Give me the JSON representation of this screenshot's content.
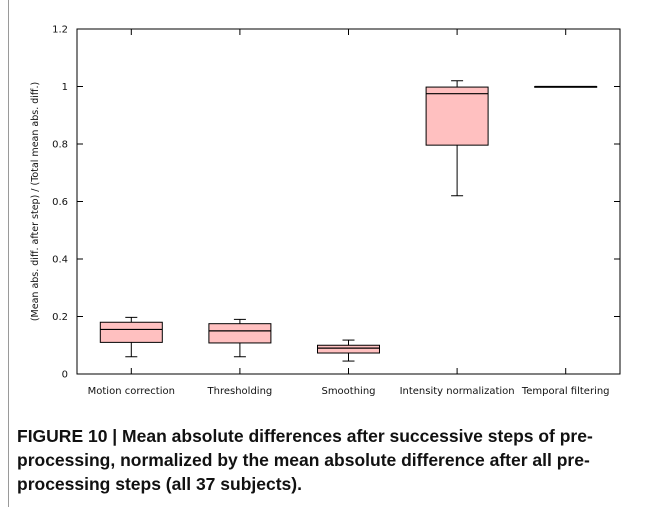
{
  "figure": {
    "caption": "FIGURE 10 | Mean absolute differences after successive steps of pre-processing, normalized by the mean absolute difference after all pre-processing steps (all 37 subjects)."
  },
  "chart_data": {
    "type": "boxplot",
    "title": "",
    "xlabel": "",
    "ylabel": "(Mean abs. diff. after step) / (Total mean abs. diff.)",
    "ylim": [
      0,
      1.2
    ],
    "yticks": [
      "0",
      "0.2",
      "0.4",
      "0.6",
      "0.8",
      "1",
      "1.2"
    ],
    "grid": false,
    "box_color": "#ffc0c0",
    "categories": [
      "Motion correction",
      "Thresholding",
      "Smoothing",
      "Intensity normalization",
      "Temporal filtering"
    ],
    "boxes": [
      {
        "whisker_low": 0.06,
        "q1": 0.11,
        "median": 0.155,
        "q3": 0.18,
        "whisker_high": 0.197
      },
      {
        "whisker_low": 0.06,
        "q1": 0.108,
        "median": 0.15,
        "q3": 0.175,
        "whisker_high": 0.19
      },
      {
        "whisker_low": 0.045,
        "q1": 0.073,
        "median": 0.09,
        "q3": 0.1,
        "whisker_high": 0.118
      },
      {
        "whisker_low": 0.62,
        "q1": 0.796,
        "median": 0.975,
        "q3": 0.998,
        "whisker_high": 1.02
      },
      {
        "whisker_low": 1.0,
        "q1": 1.0,
        "median": 1.0,
        "q3": 1.0,
        "whisker_high": 1.0
      }
    ]
  }
}
